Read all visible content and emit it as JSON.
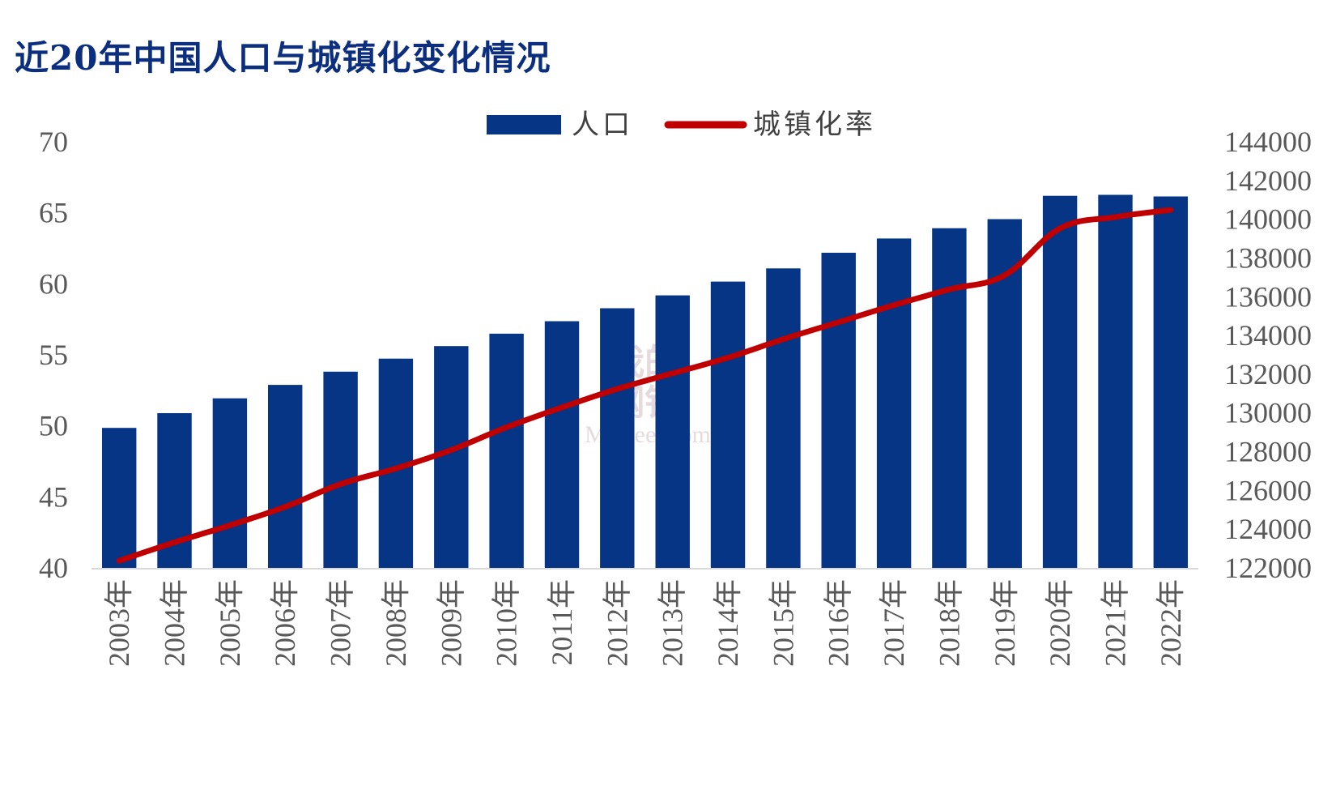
{
  "title": "近20年中国人口与城镇化变化情况",
  "watermark": {
    "line1": "我的",
    "line2": "钢铁",
    "line3": "Mysteel.com"
  },
  "colors": {
    "bar": "#063586",
    "line": "#c00000",
    "title": "#0b2e7e",
    "axis_text": "#595959",
    "axis_line": "#d9d9d9"
  },
  "chart_data": {
    "type": "bar",
    "title": "近20年中国人口与城镇化变化情况",
    "legend_position": "top",
    "grid": false,
    "categories": [
      "2003年",
      "2004年",
      "2005年",
      "2006年",
      "2007年",
      "2008年",
      "2009年",
      "2010年",
      "2011年",
      "2012年",
      "2013年",
      "2014年",
      "2015年",
      "2016年",
      "2017年",
      "2018年",
      "2019年",
      "2020年",
      "2021年",
      "2022年"
    ],
    "series": [
      {
        "name": "人口",
        "type": "bar",
        "axis": "right",
        "values": [
          129227,
          129988,
          130756,
          131448,
          132129,
          132802,
          133450,
          134091,
          134735,
          135404,
          136072,
          136782,
          137462,
          138271,
          139008,
          139538,
          140005,
          141212,
          141260,
          141175
        ]
      },
      {
        "name": "城镇化率",
        "type": "line",
        "axis": "left",
        "values": [
          40.5,
          41.8,
          43.0,
          44.3,
          45.9,
          47.0,
          48.3,
          49.9,
          51.3,
          52.6,
          53.7,
          54.8,
          56.1,
          57.3,
          58.5,
          59.6,
          60.6,
          63.9,
          64.7,
          65.2
        ]
      }
    ],
    "y_left": {
      "lim": [
        40,
        70
      ],
      "ticks": [
        "40",
        "45",
        "50",
        "55",
        "60",
        "65",
        "70"
      ]
    },
    "y_right": {
      "lim": [
        122000,
        144000
      ],
      "ticks": [
        "122000",
        "124000",
        "126000",
        "128000",
        "130000",
        "132000",
        "134000",
        "136000",
        "138000",
        "140000",
        "142000",
        "144000"
      ]
    }
  }
}
